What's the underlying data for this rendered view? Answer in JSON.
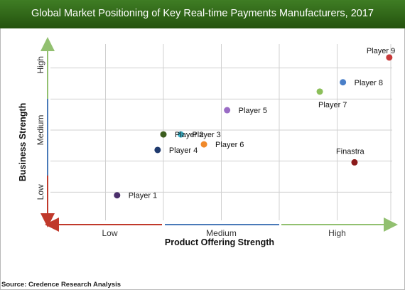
{
  "title": "Global Market Positioning of Key Real-time Payments Manufacturers, 2017",
  "source": "Source: Credence Research Analysis",
  "colors": {
    "title_bar": "#2f6a18",
    "grid": "#d0d0d0",
    "arrow_green": "#92c070",
    "arrow_red": "#c0392b",
    "arrow_blue": "#4a7ab8"
  },
  "chart_data": {
    "type": "scatter",
    "title": "Global Market Positioning of Key Real-time Payments Manufacturers, 2017",
    "xlabel": "Product Offering Strength",
    "ylabel": "Business Strength",
    "x_categories": [
      "Low",
      "Medium",
      "High"
    ],
    "y_categories": [
      "Low",
      "Medium",
      "High"
    ],
    "xlim": [
      0,
      3
    ],
    "ylim": [
      0,
      3
    ],
    "grid": true,
    "series": [
      {
        "label": "Player 1",
        "x": 0.6,
        "y": 0.45,
        "color": "#4b2f6b"
      },
      {
        "label": "Player 2",
        "x": 1.0,
        "y": 1.43,
        "color": "#3b5d1e"
      },
      {
        "label": "Player 3",
        "x": 1.15,
        "y": 1.43,
        "color": "#3cb1c8"
      },
      {
        "label": "Player 4",
        "x": 0.95,
        "y": 1.18,
        "color": "#1f3a6e"
      },
      {
        "label": "Player 5",
        "x": 1.55,
        "y": 1.82,
        "color": "#9a6cc5"
      },
      {
        "label": "Player 6",
        "x": 1.35,
        "y": 1.27,
        "color": "#f0892a"
      },
      {
        "label": "Player 7",
        "x": 2.35,
        "y": 2.12,
        "color": "#8cbf5a"
      },
      {
        "label": "Player 8",
        "x": 2.55,
        "y": 2.27,
        "color": "#4a7fc8"
      },
      {
        "label": "Player 9",
        "x": 2.95,
        "y": 2.67,
        "color": "#c83a3a"
      },
      {
        "label": "Finastra",
        "x": 2.65,
        "y": 0.98,
        "color": "#8b1a1a"
      }
    ]
  }
}
